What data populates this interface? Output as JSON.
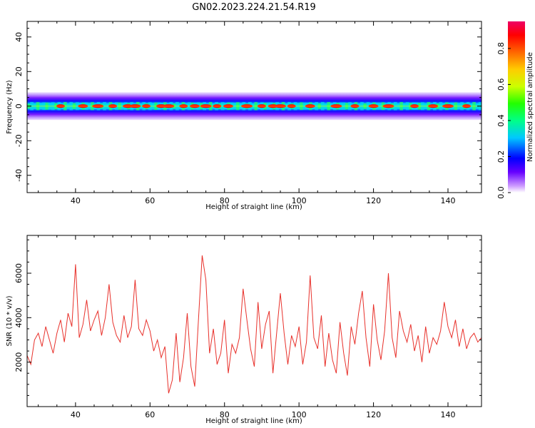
{
  "title": "GN02.2023.224.21.54.R19",
  "colorbar": {
    "label": "Normalized spectral amplitude",
    "ticks": [
      "0.0",
      "0.2",
      "0.4",
      "0.6",
      "0.8"
    ],
    "range": [
      0,
      0.95
    ]
  },
  "chart_data": [
    {
      "type": "heatmap",
      "xlabel": "Height of straight line (km)",
      "ylabel": "Frequency (Hz)",
      "xlim": [
        27,
        149
      ],
      "ylim": [
        -50,
        49
      ],
      "xticks": [
        "40",
        "60",
        "80",
        "100",
        "120",
        "140"
      ],
      "yticks": [
        "40",
        "20",
        "0",
        "-20",
        "-40"
      ],
      "band": {
        "center_hz": 0,
        "half_width_hz": 4
      },
      "hotspots_x": [
        36,
        42,
        46,
        50,
        54,
        56,
        59,
        63,
        65,
        69,
        72,
        75,
        78,
        81,
        86,
        90,
        93,
        95,
        98,
        103,
        110,
        115,
        120,
        124,
        131,
        136,
        140,
        145
      ],
      "grid": false,
      "color": "#ff0000"
    },
    {
      "type": "line",
      "xlabel": "Height of straight line (km)",
      "ylabel": "SNR (10 * v/v)",
      "xlim": [
        27,
        149
      ],
      "ylim": [
        0,
        7700
      ],
      "xticks": [
        "40",
        "60",
        "80",
        "100",
        "120",
        "140"
      ],
      "yticks": [
        "2000",
        "4000",
        "6000"
      ],
      "grid": false,
      "series": [
        {
          "color": "#e8302a",
          "x": [
            27,
            28,
            29,
            30,
            31,
            32,
            33,
            34,
            35,
            36,
            37,
            38,
            39,
            40,
            41,
            42,
            43,
            44,
            45,
            46,
            47,
            48,
            49,
            50,
            51,
            52,
            53,
            54,
            55,
            56,
            57,
            58,
            59,
            60,
            61,
            62,
            63,
            64,
            65,
            66,
            67,
            68,
            69,
            70,
            71,
            72,
            73,
            74,
            75,
            76,
            77,
            78,
            79,
            80,
            81,
            82,
            83,
            84,
            85,
            86,
            87,
            88,
            89,
            90,
            91,
            92,
            93,
            94,
            95,
            96,
            97,
            98,
            99,
            100,
            101,
            102,
            103,
            104,
            105,
            106,
            107,
            108,
            109,
            110,
            111,
            112,
            113,
            114,
            115,
            116,
            117,
            118,
            119,
            120,
            121,
            122,
            123,
            124,
            125,
            126,
            127,
            128,
            129,
            130,
            131,
            132,
            133,
            134,
            135,
            136,
            137,
            138,
            139,
            140,
            141,
            142,
            143,
            144,
            145,
            146,
            147,
            148,
            149
          ],
          "values": [
            2300,
            1900,
            3000,
            3300,
            2700,
            3600,
            3000,
            2400,
            3300,
            3900,
            2900,
            4200,
            3600,
            6400,
            3100,
            3700,
            4800,
            3400,
            3900,
            4300,
            3200,
            4000,
            5500,
            3800,
            3200,
            2900,
            4100,
            3100,
            3600,
            5700,
            3500,
            3200,
            3900,
            3400,
            2500,
            3000,
            2200,
            2700,
            600,
            1200,
            3300,
            1100,
            2200,
            4200,
            1800,
            900,
            3900,
            6800,
            5700,
            2400,
            3500,
            1900,
            2400,
            3900,
            1500,
            2800,
            2400,
            3100,
            5300,
            3900,
            2600,
            1800,
            4700,
            2600,
            3700,
            4300,
            1500,
            3300,
            5100,
            3300,
            1900,
            3200,
            2700,
            3600,
            1900,
            2900,
            5900,
            3100,
            2600,
            4100,
            1800,
            3300,
            2100,
            1500,
            3800,
            2400,
            1400,
            3600,
            2800,
            4200,
            5200,
            3100,
            1800,
            4600,
            3000,
            2100,
            3400,
            6000,
            3100,
            2200,
            4300,
            3400,
            2900,
            3700,
            2500,
            3200,
            2000,
            3600,
            2400,
            3100,
            2800,
            3400,
            4700,
            3600,
            3100,
            3900,
            2700,
            3500,
            2600,
            3100,
            3300,
            2900,
            3100
          ]
        }
      ]
    }
  ]
}
